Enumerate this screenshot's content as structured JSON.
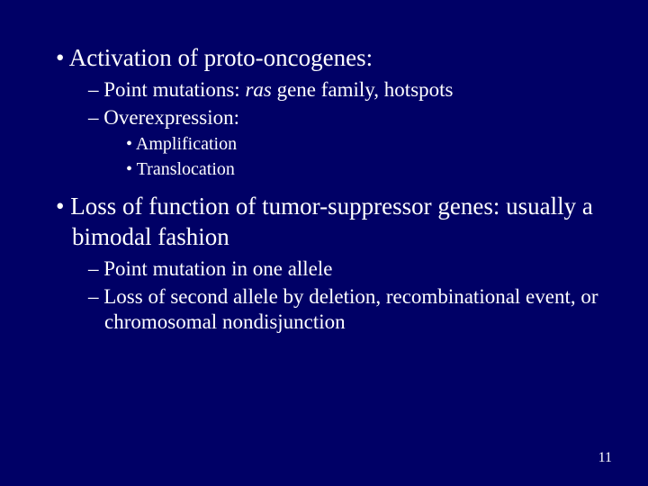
{
  "background_color": "#000066",
  "text_color": "#ffffff",
  "font_family": "Times New Roman",
  "page_number": "11",
  "bullets": {
    "b1": {
      "text": "Activation of proto-oncogenes:"
    },
    "b1_1": {
      "prefix": "Point mutations: ",
      "italic": "ras",
      "suffix": " gene family, hotspots"
    },
    "b1_2": {
      "text": "Overexpression:"
    },
    "b1_2_1": {
      "text": "Amplification"
    },
    "b1_2_2": {
      "text": "Translocation"
    },
    "b2": {
      "text": "Loss of function of tumor-suppressor genes: usually a bimodal fashion"
    },
    "b2_1": {
      "text": "Point mutation in one allele"
    },
    "b2_2": {
      "text": "Loss of second allele by deletion, recombinational event, or chromosomal nondisjunction"
    }
  }
}
